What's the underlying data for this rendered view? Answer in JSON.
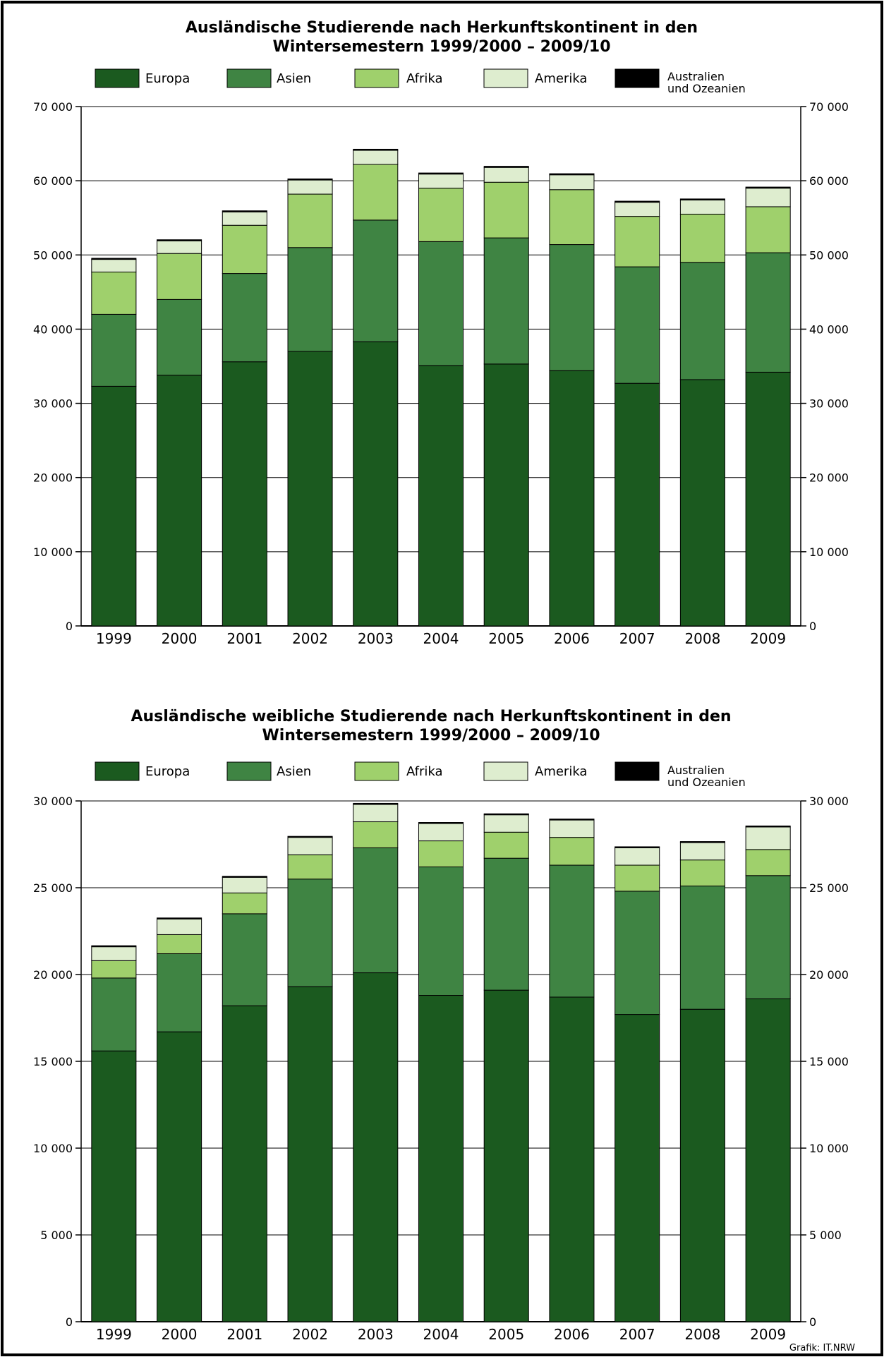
{
  "chart_data": [
    {
      "type": "bar",
      "stacked": true,
      "title": "Ausländische Studierende nach Herkunftskontinent in den Wintersemestern 1999/2000 – 2009/10",
      "title_lines": [
        "Ausländische Studierende nach Herkunftskontinent in den",
        "Wintersemestern 1999/2000 – 2009/10"
      ],
      "categories": [
        "1999",
        "2000",
        "2001",
        "2002",
        "2003",
        "2004",
        "2005",
        "2006",
        "2007",
        "2008",
        "2009"
      ],
      "ylim": [
        0,
        70000
      ],
      "yticks": [
        0,
        10000,
        20000,
        30000,
        40000,
        50000,
        60000,
        70000
      ],
      "ytick_labels": [
        "0",
        "10 000",
        "20 000",
        "30 000",
        "40 000",
        "50 000",
        "60 000",
        "70 000"
      ],
      "grid": true,
      "legend_position": "top",
      "series": [
        {
          "name": "Europa",
          "color": "#1b5a1f",
          "values": [
            32300,
            33800,
            35600,
            37000,
            38300,
            35100,
            35300,
            34400,
            32700,
            33200,
            34200
          ]
        },
        {
          "name": "Asien",
          "color": "#3f8443",
          "values": [
            9700,
            10200,
            11900,
            14000,
            16400,
            16700,
            17000,
            17000,
            15700,
            15800,
            16100
          ]
        },
        {
          "name": "Afrika",
          "color": "#9fd06c",
          "values": [
            5700,
            6200,
            6500,
            7200,
            7500,
            7200,
            7500,
            7400,
            6800,
            6500,
            6200
          ]
        },
        {
          "name": "Amerika",
          "color": "#deedcf",
          "values": [
            1700,
            1700,
            1800,
            1900,
            1900,
            1900,
            2000,
            2000,
            1900,
            1900,
            2500
          ]
        },
        {
          "name": "Australien und Ozeanien",
          "color": "#000000",
          "values": [
            150,
            150,
            150,
            150,
            150,
            150,
            150,
            150,
            150,
            150,
            150
          ]
        }
      ]
    },
    {
      "type": "bar",
      "stacked": true,
      "title": "Ausländische weibliche Studierende nach Herkunftskontinent in den Wintersemestern 1999/2000 – 2009/10",
      "title_lines": [
        "Ausländische weibliche Studierende nach Herkunftskontinent in den",
        "Wintersemestern 1999/2000 – 2009/10"
      ],
      "categories": [
        "1999",
        "2000",
        "2001",
        "2002",
        "2003",
        "2004",
        "2005",
        "2006",
        "2007",
        "2008",
        "2009"
      ],
      "ylim": [
        0,
        30000
      ],
      "yticks": [
        0,
        5000,
        10000,
        15000,
        20000,
        25000,
        30000
      ],
      "ytick_labels": [
        "0",
        "5 000",
        "10 000",
        "15 000",
        "20 000",
        "25 000",
        "30 000"
      ],
      "grid": true,
      "legend_position": "top",
      "series": [
        {
          "name": "Europa",
          "color": "#1b5a1f",
          "values": [
            15600,
            16700,
            18200,
            19300,
            20100,
            18800,
            19100,
            18700,
            17700,
            18000,
            18600
          ]
        },
        {
          "name": "Asien",
          "color": "#3f8443",
          "values": [
            4200,
            4500,
            5300,
            6200,
            7200,
            7400,
            7600,
            7600,
            7100,
            7100,
            7100
          ]
        },
        {
          "name": "Afrika",
          "color": "#9fd06c",
          "values": [
            1000,
            1100,
            1200,
            1400,
            1500,
            1500,
            1500,
            1600,
            1500,
            1500,
            1500
          ]
        },
        {
          "name": "Amerika",
          "color": "#deedcf",
          "values": [
            800,
            900,
            900,
            1000,
            1000,
            1000,
            1000,
            1000,
            1000,
            1000,
            1300
          ]
        },
        {
          "name": "Australien und Ozeanien",
          "color": "#000000",
          "values": [
            60,
            60,
            60,
            60,
            60,
            60,
            60,
            60,
            60,
            60,
            60
          ]
        }
      ]
    }
  ],
  "legend": {
    "europa": "Europa",
    "asien": "Asien",
    "afrika": "Afrika",
    "amerika": "Amerika",
    "australien_line1": "Australien",
    "australien_line2": "und Ozeanien"
  },
  "credit": "Grafik: IT.NRW"
}
